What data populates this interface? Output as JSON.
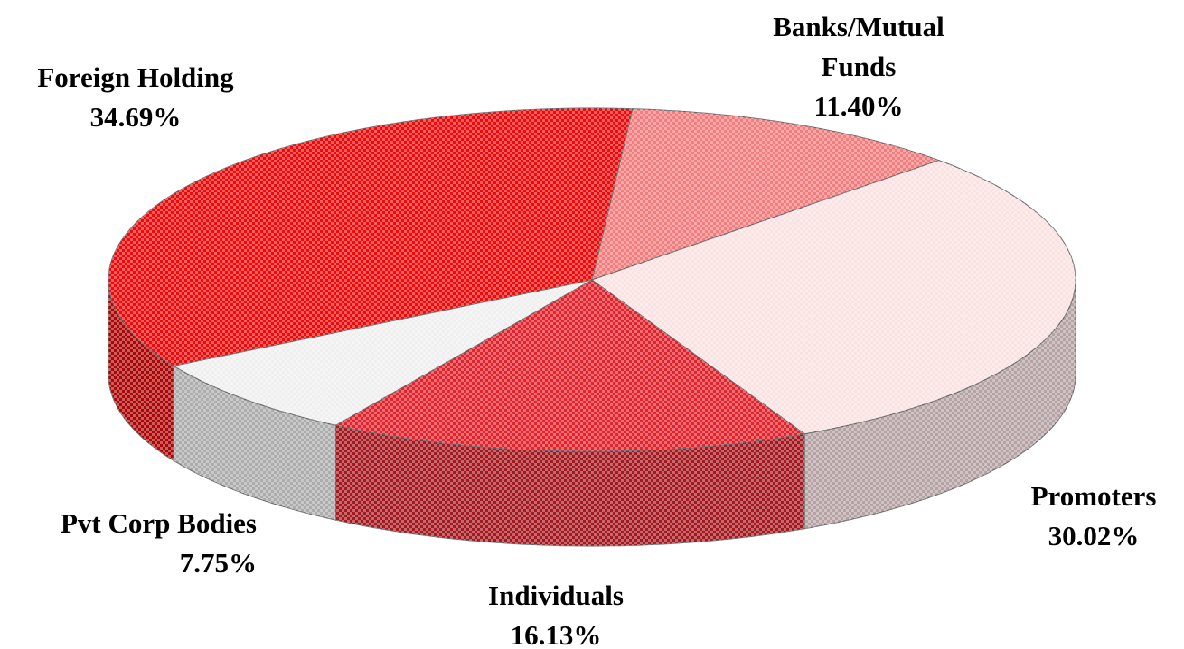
{
  "chart_data": {
    "type": "pie3d",
    "categories": [
      "Banks/Mutual Funds",
      "Promoters",
      "Individuals",
      "Pvt Corp Bodies",
      "Foreign Holding"
    ],
    "values": [
      11.4,
      30.02,
      16.13,
      7.75,
      34.69
    ],
    "value_labels": [
      "11.40%",
      "30.02%",
      "16.13%",
      "7.75%",
      "34.69%"
    ],
    "colors": [
      "#f47c7c",
      "#fbe2e2",
      "#e4222c",
      "#efefef",
      "#ee0a0a"
    ]
  }
}
